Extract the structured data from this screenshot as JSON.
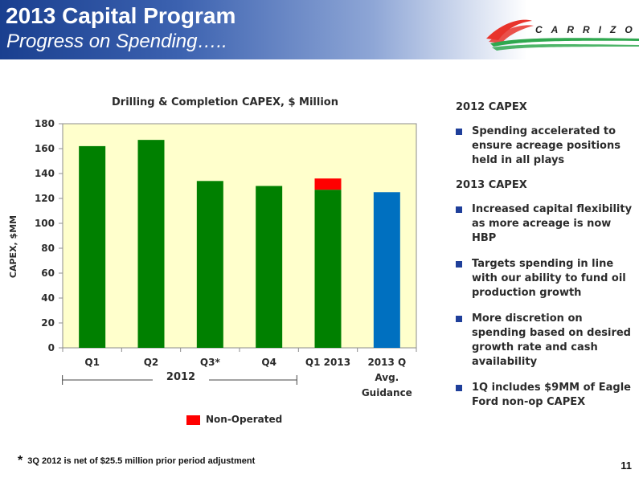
{
  "header": {
    "title": "2013 Capital Program",
    "subtitle": "Progress on Spending…..",
    "logo_text": "CARRIZO"
  },
  "chart_data": {
    "type": "bar",
    "stacked": true,
    "title": "Drilling & Completion CAPEX, $ Million",
    "xlabel": "",
    "ylabel": "CAPEX, $MM",
    "ylim": [
      0,
      180
    ],
    "yticks": [
      0,
      20,
      40,
      60,
      80,
      100,
      120,
      140,
      160,
      180
    ],
    "categories": [
      "Q1",
      "Q2",
      "Q3*",
      "Q4",
      "Q1 2013",
      "2013 Q Avg. Guidance"
    ],
    "category_lines": [
      [
        "Q1"
      ],
      [
        "Q2"
      ],
      [
        "Q3*"
      ],
      [
        "Q4"
      ],
      [
        "Q1 2013"
      ],
      [
        "2013 Q",
        "Avg.",
        "Guidance"
      ]
    ],
    "series": [
      {
        "name": "",
        "color": "#008000",
        "values": [
          162,
          167,
          134,
          130,
          127,
          0
        ]
      },
      {
        "name": "Non-Operated",
        "color": "#ff0000",
        "values": [
          0,
          0,
          0,
          0,
          9,
          0
        ]
      },
      {
        "name": "",
        "color": "#0070c0",
        "values": [
          0,
          0,
          0,
          0,
          0,
          125
        ]
      }
    ],
    "grid": false,
    "plot_background": "#ffffcc",
    "group_label": {
      "text": "2012",
      "from_category": 0,
      "to_category": 3
    },
    "legend": {
      "placement": "bottom",
      "entries": [
        "Non-Operated"
      ]
    }
  },
  "sidebar": {
    "sections": [
      {
        "heading": "2012 CAPEX",
        "bullets": [
          "Spending accelerated to ensure acreage positions held in all plays"
        ]
      },
      {
        "heading": "2013 CAPEX",
        "bullets": [
          "Increased capital flexibility as more acreage is now HBP",
          "Targets spending in line with our ability to fund oil production growth",
          "More discretion on spending based on desired growth rate and cash availability",
          "1Q includes $9MM of Eagle Ford non-op CAPEX"
        ]
      }
    ]
  },
  "footer": {
    "footnote_mark": "*",
    "footnote": "3Q 2012 is net of $25.5 million prior period adjustment",
    "page_number": "11"
  },
  "colors": {
    "header_blue": "#1a3f8f",
    "bullet_blue": "#1f3f9a",
    "green": "#008000",
    "red": "#ff0000",
    "blue": "#0070c0"
  }
}
